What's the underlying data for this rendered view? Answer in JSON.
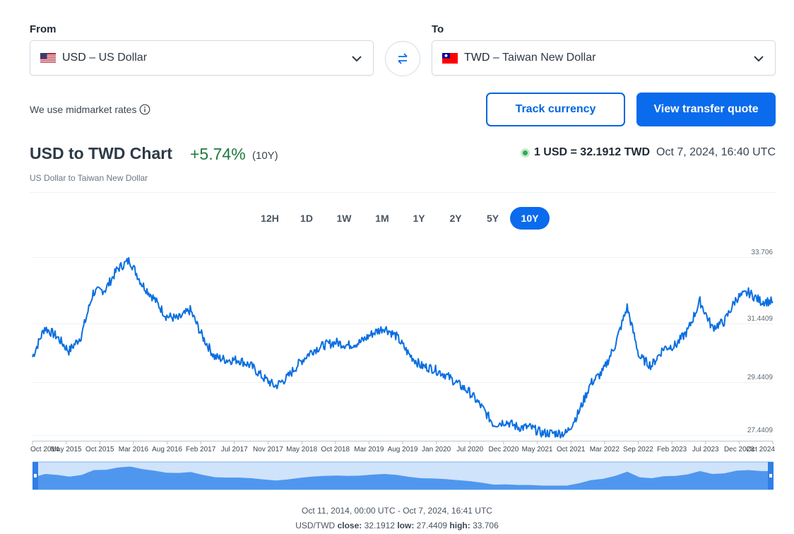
{
  "converter": {
    "from_label": "From",
    "to_label": "To",
    "from_code": "USD",
    "from_name": " – US Dollar",
    "to_code": "TWD",
    "to_name": " – Taiwan New Dollar",
    "swap_icon": "swap-arrows-icon",
    "chevron_icon": "chevron-down-icon"
  },
  "note": {
    "text": "We use midmarket rates",
    "icon": "info-icon"
  },
  "buttons": {
    "track": "Track currency",
    "quote": "View transfer quote"
  },
  "header": {
    "title": "USD to TWD Chart",
    "change": "+5.74%",
    "period": "(10Y)",
    "subtitle": "US Dollar to Taiwan New Dollar",
    "rate": "1 USD = 32.1912 TWD",
    "timestamp": "Oct 7, 2024, 16:40 UTC"
  },
  "periods": [
    {
      "label": "12H",
      "active": false
    },
    {
      "label": "1D",
      "active": false
    },
    {
      "label": "1W",
      "active": false
    },
    {
      "label": "1M",
      "active": false
    },
    {
      "label": "1Y",
      "active": false
    },
    {
      "label": "2Y",
      "active": false
    },
    {
      "label": "5Y",
      "active": false
    },
    {
      "label": "10Y",
      "active": true
    }
  ],
  "footer": {
    "range": "Oct 11, 2014, 00:00 UTC - Oct 7, 2024, 16:41 UTC",
    "pair": "USD/TWD",
    "close_label": "close:",
    "close": "32.1912",
    "low_label": "low:",
    "low": "27.4409",
    "high_label": "high:",
    "high": "33.706"
  },
  "colors": {
    "accent": "#0a6bed",
    "line": "#0b6fe0",
    "positive": "#1e7a3c",
    "navigator_fill": "#4f97ee",
    "navigator_bg": "#cfe3fb"
  },
  "chart_data": {
    "type": "line",
    "series_name": "USD/TWD",
    "y_ticks": [
      "33.706",
      "31.4409",
      "29.4409",
      "27.4409"
    ],
    "y_tick_values": [
      33.706,
      31.4409,
      29.4409,
      27.4409
    ],
    "ylim": [
      27.4409,
      33.706
    ],
    "x_tick_labels": [
      "Oct 2014",
      "May 2015",
      "Oct 2015",
      "Mar 2016",
      "Aug 2016",
      "Feb 2017",
      "Jul 2017",
      "Nov 2017",
      "May 2018",
      "Oct 2018",
      "Mar 2019",
      "Aug 2019",
      "Jan 2020",
      "Jul 2020",
      "Dec 2020",
      "May 2021",
      "Oct 2021",
      "Mar 2022",
      "Sep 2022",
      "Feb 2023",
      "Jul 2023",
      "Dec 2023",
      "Oct 2024"
    ],
    "x": [
      "2014-10",
      "2014-12",
      "2015-03",
      "2015-05",
      "2015-07",
      "2015-09",
      "2015-11",
      "2016-01",
      "2016-02",
      "2016-04",
      "2016-06",
      "2016-08",
      "2016-10",
      "2016-12",
      "2017-02",
      "2017-04",
      "2017-06",
      "2017-08",
      "2017-10",
      "2017-12",
      "2018-02",
      "2018-04",
      "2018-06",
      "2018-08",
      "2018-10",
      "2018-12",
      "2019-02",
      "2019-04",
      "2019-06",
      "2019-08",
      "2019-09",
      "2019-11",
      "2020-01",
      "2020-03",
      "2020-05",
      "2020-07",
      "2020-09",
      "2020-11",
      "2021-01",
      "2021-03",
      "2021-05",
      "2021-07",
      "2021-09",
      "2021-11",
      "2022-01",
      "2022-03",
      "2022-05",
      "2022-07",
      "2022-09",
      "2022-10",
      "2022-12",
      "2023-02",
      "2023-04",
      "2023-06",
      "2023-08",
      "2023-10",
      "2023-12",
      "2024-02",
      "2024-04",
      "2024-06",
      "2024-08",
      "2024-10"
    ],
    "values": [
      30.3,
      31.3,
      31.0,
      30.5,
      31.0,
      32.5,
      32.6,
      33.3,
      33.6,
      32.8,
      32.3,
      31.7,
      31.6,
      31.9,
      31.0,
      30.3,
      30.2,
      30.2,
      30.0,
      29.6,
      29.3,
      29.6,
      30.1,
      30.5,
      30.7,
      30.8,
      30.7,
      30.8,
      31.1,
      31.3,
      31.0,
      30.4,
      30.0,
      29.9,
      29.7,
      29.4,
      29.1,
      28.6,
      28.0,
      28.1,
      27.9,
      27.9,
      27.7,
      27.7,
      27.7,
      28.4,
      29.4,
      29.8,
      30.7,
      32.0,
      30.3,
      30.0,
      30.6,
      30.7,
      31.2,
      32.2,
      31.3,
      31.5,
      32.3,
      32.5,
      32.2,
      32.19
    ],
    "ylabel": "",
    "xlabel": ""
  }
}
